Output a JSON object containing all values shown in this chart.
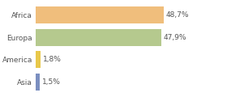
{
  "categories": [
    "Asia",
    "America",
    "Europa",
    "Africa"
  ],
  "values": [
    1.5,
    1.8,
    47.9,
    48.7
  ],
  "labels": [
    "1,5%",
    "1,8%",
    "47,9%",
    "48,7%"
  ],
  "bar_colors": [
    "#7b8fc0",
    "#e8c84a",
    "#b5c98e",
    "#f0be7c"
  ],
  "background_color": "#ffffff",
  "label_fontsize": 6.5,
  "tick_fontsize": 6.5,
  "xlim": 72,
  "bar_height": 0.75,
  "label_color": "#555555",
  "tick_color": "#555555"
}
